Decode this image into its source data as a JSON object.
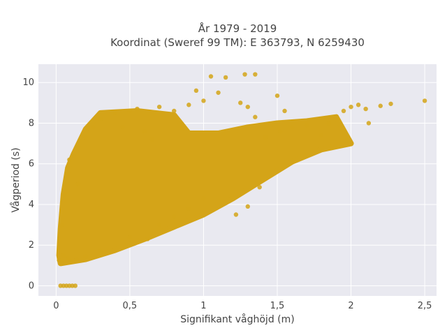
{
  "chart_data": {
    "type": "scatter",
    "title": "År 1979 - 2019",
    "subtitle": "Koordinat (Sweref 99 TM): E 363793, N 6259430",
    "xlabel": "Signifikant våghöjd (m)",
    "ylabel": "Vågperiod (s)",
    "xlim": [
      -0.12,
      2.58
    ],
    "ylim": [
      -0.5,
      10.9
    ],
    "xticks": [
      0,
      0.5,
      1,
      1.5,
      2,
      2.5
    ],
    "xtick_labels": [
      "0",
      "0,5",
      "1",
      "1,5",
      "2",
      "2,5"
    ],
    "yticks": [
      0,
      2,
      4,
      6,
      8,
      10
    ],
    "ytick_labels": [
      "0",
      "2",
      "4",
      "6",
      "8",
      "10"
    ],
    "grid": true,
    "legend": "none",
    "colors": {
      "marker": "#d4a418",
      "plot_background": "#e9e9f0",
      "grid": "#ffffff"
    },
    "series": [
      {
        "points": [
          [
            0.03,
            0.0
          ],
          [
            0.05,
            0.0
          ],
          [
            0.07,
            0.0
          ],
          [
            0.09,
            0.0
          ],
          [
            0.11,
            0.0
          ],
          [
            0.13,
            0.0
          ],
          [
            0.02,
            1.25
          ],
          [
            0.05,
            1.5
          ],
          [
            0.08,
            1.35
          ],
          [
            0.1,
            1.2
          ],
          [
            0.14,
            1.3
          ],
          [
            0.2,
            1.45
          ],
          [
            0.3,
            1.7
          ],
          [
            0.04,
            3.0
          ],
          [
            0.06,
            4.5
          ],
          [
            0.08,
            5.5
          ],
          [
            0.09,
            6.2
          ],
          [
            0.12,
            6.4
          ],
          [
            0.15,
            5.0
          ],
          [
            0.2,
            7.3
          ],
          [
            0.25,
            7.8
          ],
          [
            0.3,
            8.2
          ],
          [
            0.4,
            8.5
          ],
          [
            0.5,
            8.6
          ],
          [
            0.55,
            8.7
          ],
          [
            0.7,
            8.8
          ],
          [
            0.8,
            8.6
          ],
          [
            0.45,
            7.8
          ],
          [
            0.6,
            7.6
          ],
          [
            0.65,
            7.2
          ],
          [
            0.5,
            2.4
          ],
          [
            0.62,
            2.3
          ],
          [
            0.7,
            3.0
          ],
          [
            0.8,
            3.4
          ],
          [
            0.9,
            3.8
          ],
          [
            1.0,
            4.3
          ],
          [
            0.9,
            8.9
          ],
          [
            1.0,
            9.1
          ],
          [
            1.1,
            9.5
          ],
          [
            1.05,
            10.3
          ],
          [
            1.15,
            10.25
          ],
          [
            1.28,
            10.4
          ],
          [
            1.35,
            10.4
          ],
          [
            1.25,
            9.0
          ],
          [
            1.3,
            8.8
          ],
          [
            1.35,
            8.3
          ],
          [
            1.22,
            3.5
          ],
          [
            1.3,
            3.9
          ],
          [
            1.38,
            4.85
          ],
          [
            0.95,
            9.6
          ],
          [
            1.5,
            9.35
          ],
          [
            1.42,
            7.3
          ],
          [
            1.52,
            7.6
          ],
          [
            1.6,
            7.8
          ],
          [
            1.7,
            7.9
          ],
          [
            1.85,
            8.0
          ],
          [
            1.95,
            8.6
          ],
          [
            2.0,
            8.8
          ],
          [
            2.05,
            8.9
          ],
          [
            2.1,
            8.7
          ],
          [
            2.2,
            8.85
          ],
          [
            2.27,
            8.95
          ],
          [
            2.5,
            9.1
          ],
          [
            2.12,
            8.0
          ],
          [
            1.8,
            7.4
          ],
          [
            1.55,
            8.6
          ]
        ]
      }
    ]
  }
}
